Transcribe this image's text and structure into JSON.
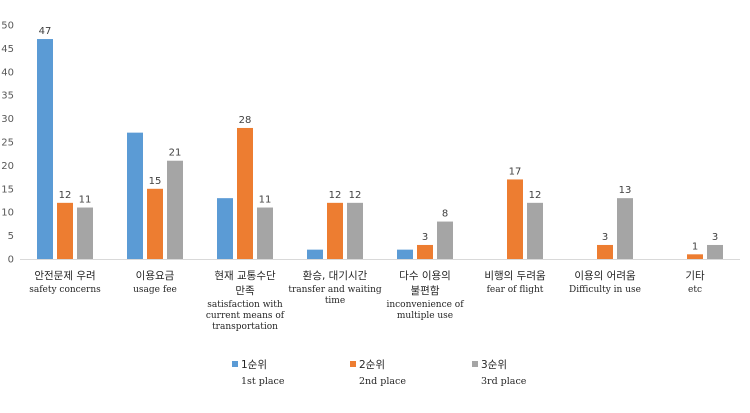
{
  "chart_data": {
    "type": "bar",
    "ylim": [
      0,
      50
    ],
    "yticks": [
      0,
      5,
      10,
      15,
      20,
      25,
      30,
      35,
      40,
      45,
      50
    ],
    "grid": false,
    "legend_position": "bottom",
    "categories": [
      {
        "ko": [
          "안전문제 우려"
        ],
        "en": [
          "safety  concerns"
        ]
      },
      {
        "ko": [
          "이용요금"
        ],
        "en": [
          "usage fee"
        ]
      },
      {
        "ko": [
          "현재 교통수단",
          "만족"
        ],
        "en": [
          "satisfaction  with",
          "current means  of",
          "transportation"
        ]
      },
      {
        "ko": [
          "환승, 대기시간"
        ],
        "en": [
          "transfer  and waiting",
          "time"
        ]
      },
      {
        "ko": [
          "다수 이용의",
          "불편함"
        ],
        "en": [
          "inconvenience  of",
          "multiple  use"
        ]
      },
      {
        "ko": [
          "비행의 두려움"
        ],
        "en": [
          "fear of flight"
        ]
      },
      {
        "ko": [
          "이용의 어려움"
        ],
        "en": [
          "Difficulty  in use"
        ]
      },
      {
        "ko": [
          "기타"
        ],
        "en": [
          "etc"
        ]
      }
    ],
    "series": [
      {
        "name_ko": "1순위",
        "name_en": "1st place",
        "color": "#5B9BD5",
        "values": [
          47,
          27,
          13,
          2,
          2,
          0,
          0,
          0
        ],
        "labels": [
          "47",
          "",
          "",
          "",
          "",
          "",
          "",
          ""
        ]
      },
      {
        "name_ko": "2순위",
        "name_en": "2nd place",
        "color": "#ED7D31",
        "values": [
          12,
          15,
          28,
          12,
          3,
          17,
          3,
          1
        ],
        "labels": [
          "12",
          "15",
          "28",
          "12",
          "3",
          "17",
          "3",
          "1"
        ]
      },
      {
        "name_ko": "3순위",
        "name_en": "3rd place",
        "color": "#A5A5A5",
        "values": [
          11,
          21,
          11,
          12,
          8,
          12,
          13,
          3
        ],
        "labels": [
          "11",
          "21",
          "11",
          "12",
          "8",
          "12",
          "13",
          "3"
        ]
      }
    ]
  }
}
